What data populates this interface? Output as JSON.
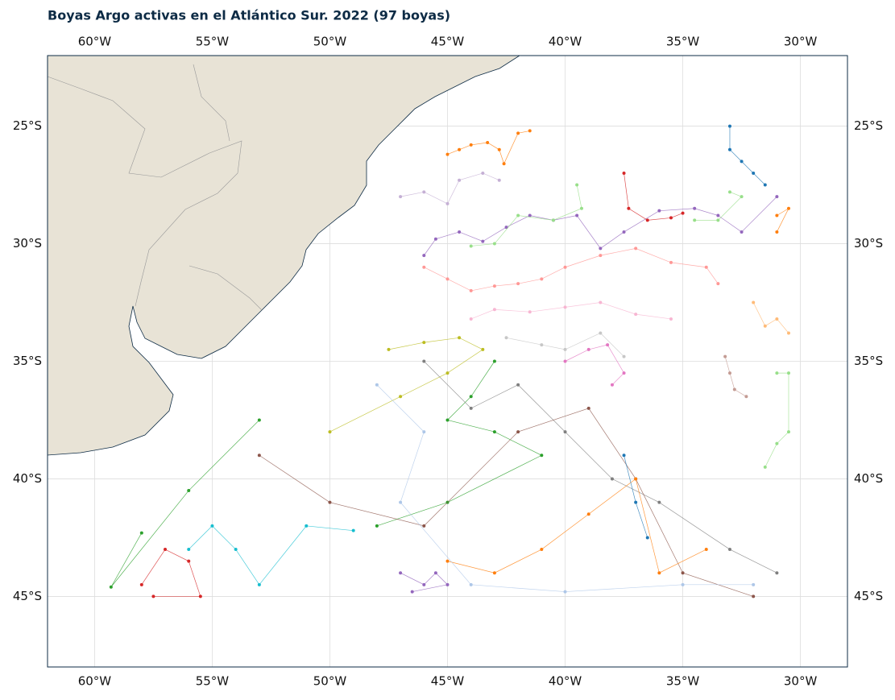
{
  "chart_data": {
    "type": "map",
    "title": "Boyas Argo activas en el Atlántico Sur. 2022 (97 boyas)",
    "xlim": [
      -62,
      -28
    ],
    "ylim": [
      -48,
      -22
    ],
    "xticks": [
      {
        "value": -60,
        "label": "60°W"
      },
      {
        "value": -55,
        "label": "55°W"
      },
      {
        "value": -50,
        "label": "50°W"
      },
      {
        "value": -45,
        "label": "45°W"
      },
      {
        "value": -40,
        "label": "40°W"
      },
      {
        "value": -35,
        "label": "35°W"
      },
      {
        "value": -30,
        "label": "30°W"
      }
    ],
    "yticks": [
      {
        "value": -25,
        "label": "25°S"
      },
      {
        "value": -30,
        "label": "30°S"
      },
      {
        "value": -35,
        "label": "35°S"
      },
      {
        "value": -40,
        "label": "40°S"
      },
      {
        "value": -45,
        "label": "45°S"
      }
    ],
    "grid": true,
    "series": [
      {
        "color": "#ff7f0e",
        "lon": [
          -45,
          -44.5,
          -44,
          -43.3,
          -42.8,
          -42.6,
          -42,
          -41.5
        ],
        "lat": [
          -26.2,
          -26,
          -25.8,
          -25.7,
          -26,
          -26.6,
          -25.3,
          -25.2
        ]
      },
      {
        "color": "#9467bd",
        "lon": [
          -46,
          -45.5,
          -44.5,
          -43.5,
          -42.5,
          -41.5,
          -40.5,
          -39.5,
          -38.5,
          -37.5,
          -36,
          -34.5,
          -33.5,
          -32.5,
          -31
        ],
        "lat": [
          -30.5,
          -29.8,
          -29.5,
          -29.9,
          -29.3,
          -28.8,
          -29,
          -28.8,
          -30.2,
          -29.5,
          -28.6,
          -28.5,
          -28.8,
          -29.5,
          -28
        ]
      },
      {
        "color": "#d62728",
        "lon": [
          -37.5,
          -37.3,
          -36.5,
          -35.5,
          -35
        ],
        "lat": [
          -27,
          -28.5,
          -29,
          -28.9,
          -28.7
        ]
      },
      {
        "color": "#ff9896",
        "lon": [
          -46,
          -45,
          -44,
          -43,
          -42,
          -41,
          -40,
          -38.5,
          -37,
          -35.5,
          -34,
          -33.5
        ],
        "lat": [
          -31,
          -31.5,
          -32,
          -31.8,
          -31.7,
          -31.5,
          -31,
          -30.5,
          -30.2,
          -30.8,
          -31,
          -31.7
        ]
      },
      {
        "color": "#c5b0d5",
        "lon": [
          -47,
          -46,
          -45,
          -44.5,
          -43.5,
          -42.8
        ],
        "lat": [
          -28,
          -27.8,
          -28.3,
          -27.3,
          -27,
          -27.3
        ]
      },
      {
        "color": "#98df8a",
        "lon": [
          -39.5,
          -39.3,
          -40.5,
          -42,
          -43,
          -44
        ],
        "lat": [
          -27.5,
          -28.5,
          -29,
          -28.8,
          -30,
          -30.1
        ]
      },
      {
        "color": "#1f77b4",
        "lon": [
          -33,
          -33,
          -32.5,
          -32,
          -31.5
        ],
        "lat": [
          -25,
          -26,
          -26.5,
          -27,
          -27.5
        ]
      },
      {
        "color": "#98df8a",
        "lon": [
          -33,
          -32.5,
          -33.5,
          -34.5
        ],
        "lat": [
          -27.8,
          -28,
          -29,
          -29
        ]
      },
      {
        "color": "#ff7f0e",
        "lon": [
          -31,
          -30.5,
          -31
        ],
        "lat": [
          -28.8,
          -28.5,
          -29.5
        ]
      },
      {
        "color": "#f7b6d2",
        "lon": [
          -44,
          -43,
          -41.5,
          -40,
          -38.5,
          -37,
          -35.5
        ],
        "lat": [
          -33.2,
          -32.8,
          -32.9,
          -32.7,
          -32.5,
          -33,
          -33.2
        ]
      },
      {
        "color": "#c7c7c7",
        "lon": [
          -42.5,
          -41,
          -40,
          -38.5,
          -37.5
        ],
        "lat": [
          -34,
          -34.3,
          -34.5,
          -33.8,
          -34.8
        ]
      },
      {
        "color": "#e377c2",
        "lon": [
          -40,
          -39,
          -38.2,
          -37.5,
          -38
        ],
        "lat": [
          -35,
          -34.5,
          -34.3,
          -35.5,
          -36
        ]
      },
      {
        "color": "#c49c94",
        "lon": [
          -33.2,
          -33,
          -32.8,
          -32.3
        ],
        "lat": [
          -34.8,
          -35.5,
          -36.2,
          -36.5
        ]
      },
      {
        "color": "#ffbb78",
        "lon": [
          -32,
          -31.5,
          -31,
          -30.5
        ],
        "lat": [
          -32.5,
          -33.5,
          -33.2,
          -33.8
        ]
      },
      {
        "color": "#bcbd22",
        "lon": [
          -47.5,
          -46,
          -44.5,
          -43.5,
          -45,
          -47,
          -50
        ],
        "lat": [
          -34.5,
          -34.2,
          -34,
          -34.5,
          -35.5,
          -36.5,
          -38
        ]
      },
      {
        "color": "#2ca02c",
        "lon": [
          -43,
          -44,
          -45,
          -43,
          -41,
          -45,
          -48
        ],
        "lat": [
          -35,
          -36.5,
          -37.5,
          -38,
          -39,
          -41,
          -42
        ]
      },
      {
        "color": "#7f7f7f",
        "lon": [
          -46,
          -44,
          -42,
          -40,
          -38,
          -36,
          -33,
          -31
        ],
        "lat": [
          -35,
          -37,
          -36,
          -38,
          -40,
          -41,
          -43,
          -44
        ]
      },
      {
        "color": "#8c564b",
        "lon": [
          -53,
          -50,
          -46,
          -42,
          -39,
          -37,
          -35,
          -32
        ],
        "lat": [
          -39,
          -41,
          -42,
          -38,
          -37,
          -40,
          -44,
          -45
        ]
      },
      {
        "color": "#d62728",
        "lon": [
          -58,
          -57,
          -56,
          -55.5,
          -57.5
        ],
        "lat": [
          -44.5,
          -43,
          -43.5,
          -45,
          -45
        ]
      },
      {
        "color": "#17becf",
        "lon": [
          -56,
          -55,
          -54,
          -53,
          -51,
          -49
        ],
        "lat": [
          -43,
          -42,
          -43,
          -44.5,
          -42,
          -42.2
        ]
      },
      {
        "color": "#ff7f0e",
        "lon": [
          -45,
          -43,
          -41,
          -39,
          -37,
          -36,
          -34
        ],
        "lat": [
          -43.5,
          -44,
          -43,
          -41.5,
          -40,
          -44,
          -43
        ]
      },
      {
        "color": "#aec7e8",
        "lon": [
          -48,
          -46,
          -47,
          -44,
          -40,
          -35,
          -32
        ],
        "lat": [
          -36,
          -38,
          -41,
          -44.5,
          -44.8,
          -44.5,
          -44.5
        ]
      },
      {
        "color": "#1f77b4",
        "lon": [
          -37.5,
          -37,
          -36.5
        ],
        "lat": [
          -39,
          -41,
          -42.5
        ]
      },
      {
        "color": "#2ca02c",
        "lon": [
          -58,
          -59.3,
          -56,
          -53
        ],
        "lat": [
          -42.3,
          -44.6,
          -40.5,
          -37.5
        ]
      },
      {
        "color": "#98df8a",
        "lon": [
          -31,
          -30.5,
          -30.5,
          -31,
          -31.5
        ],
        "lat": [
          -35.5,
          -35.5,
          -38,
          -38.5,
          -39.5
        ]
      },
      {
        "color": "#9467bd",
        "lon": [
          -47,
          -46,
          -45.5,
          -45,
          -46.5
        ],
        "lat": [
          -44,
          -44.5,
          -44,
          -44.5,
          -44.8
        ]
      }
    ]
  }
}
